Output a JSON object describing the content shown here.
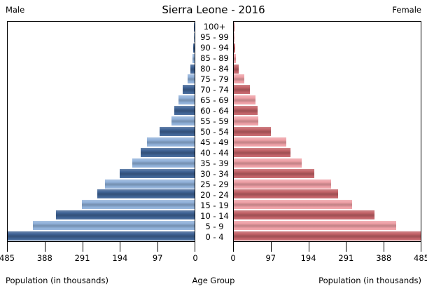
{
  "header": {
    "title": "Sierra Leone - 2016",
    "male_label": "Male",
    "female_label": "Female"
  },
  "chart_data": {
    "type": "bar",
    "subtype": "population-pyramid",
    "title": "Sierra Leone - 2016",
    "unit": "thousands",
    "xlim": [
      0,
      485
    ],
    "grid": false,
    "age_groups": [
      "100+",
      "95 - 99",
      "90 - 94",
      "85 - 89",
      "80 - 84",
      "75 - 79",
      "70 - 74",
      "65 - 69",
      "60 - 64",
      "55 - 59",
      "50 - 54",
      "45 - 49",
      "40 - 44",
      "35 - 39",
      "30 - 34",
      "25 - 29",
      "20 - 24",
      "15 - 19",
      "10 - 14",
      "5 - 9",
      "0 - 4"
    ],
    "series": [
      {
        "name": "Male",
        "values": [
          1,
          2,
          3,
          5,
          11,
          18,
          31,
          42,
          52,
          60,
          90,
          123,
          139,
          162,
          195,
          233,
          252,
          293,
          360,
          420,
          485
        ]
      },
      {
        "name": "Female",
        "values": [
          1,
          2,
          3,
          5,
          12,
          27,
          41,
          56,
          61,
          63,
          97,
          137,
          148,
          176,
          209,
          252,
          271,
          307,
          366,
          421,
          485
        ]
      }
    ],
    "x_ticks_left": [
      485,
      388,
      291,
      194,
      97,
      0
    ],
    "x_ticks_right": [
      0,
      97,
      194,
      291,
      388,
      485
    ],
    "xlabel_left": "Population (in thousands)",
    "xlabel_center": "Age Group",
    "xlabel_right": "Population (in thousands)"
  },
  "colors": {
    "male_dark": "#3f6395",
    "male_light": "#8fb0d9",
    "female_dark": "#c26267",
    "female_light": "#ee9fa5",
    "frame": "#000000",
    "background": "#ffffff"
  }
}
